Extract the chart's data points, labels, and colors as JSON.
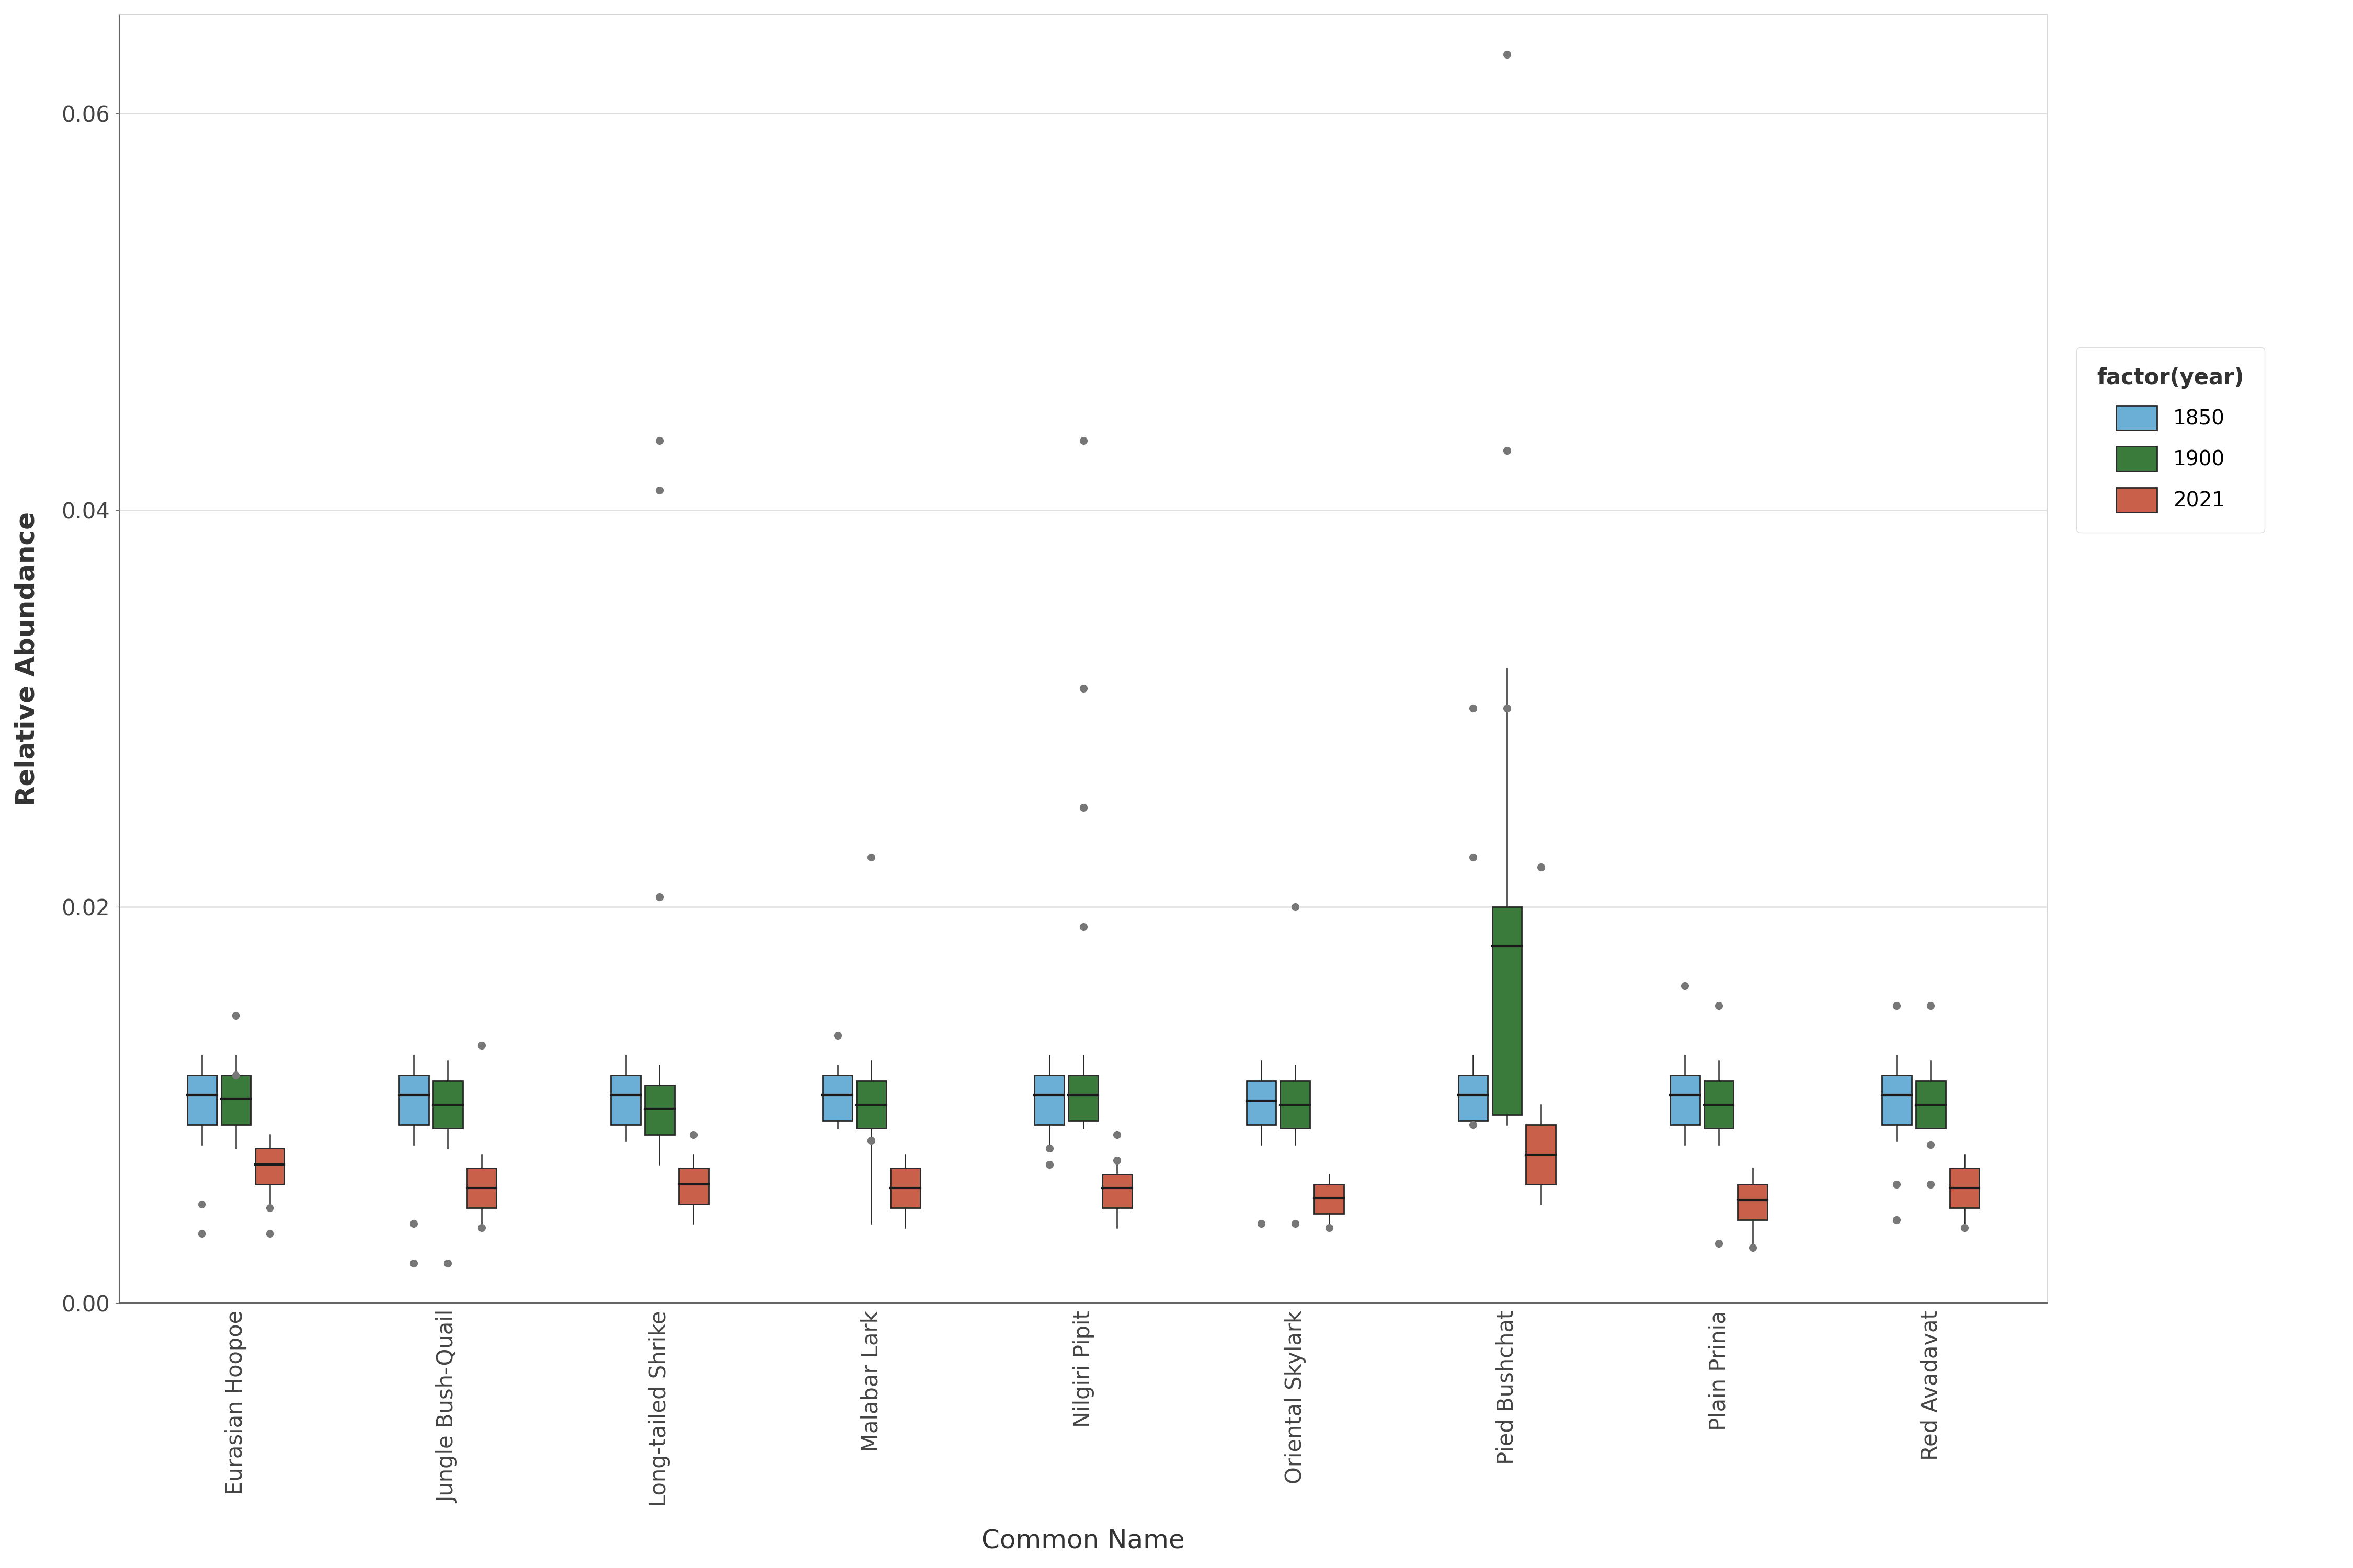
{
  "species": [
    "Eurasian Hoopoe",
    "Jungle Bush-Quail",
    "Long-tailed Shrike",
    "Malabar Lark",
    "Nilgiri Pipit",
    "Oriental Skylark",
    "Pied Bushchat",
    "Plain Prinia",
    "Red Avadavat"
  ],
  "years": [
    "1850",
    "1900",
    "2021"
  ],
  "box_colors": {
    "1850": "#6BAED6",
    "1900": "#3A7A3A",
    "2021": "#C9614A"
  },
  "edge_color": "#2A2A2A",
  "median_color": "#1A1A1A",
  "outlier_color": "#777777",
  "xlabel": "Common Name",
  "ylabel": "Relative Abundance",
  "legend_title": "factor(year)",
  "ylim": [
    0.0,
    0.065
  ],
  "yticks": [
    0.0,
    0.02,
    0.04,
    0.06
  ],
  "background_color": "#FFFFFF",
  "grid_color": "#E0E0E0",
  "box_data": {
    "Eurasian Hoopoe": {
      "1850": {
        "q1": 0.009,
        "median": 0.0105,
        "q3": 0.0115,
        "whisker_low": 0.008,
        "whisker_high": 0.0125,
        "outliers": [
          0.005,
          0.0035
        ]
      },
      "1900": {
        "q1": 0.009,
        "median": 0.0103,
        "q3": 0.0115,
        "whisker_low": 0.0078,
        "whisker_high": 0.0125,
        "outliers": [
          0.0145,
          0.0115
        ]
      },
      "2021": {
        "q1": 0.006,
        "median": 0.007,
        "q3": 0.0078,
        "whisker_low": 0.005,
        "whisker_high": 0.0085,
        "outliers": [
          0.0048,
          0.0035
        ]
      }
    },
    "Jungle Bush-Quail": {
      "1850": {
        "q1": 0.009,
        "median": 0.0105,
        "q3": 0.0115,
        "whisker_low": 0.008,
        "whisker_high": 0.0125,
        "outliers": [
          0.004,
          0.002
        ]
      },
      "1900": {
        "q1": 0.0088,
        "median": 0.01,
        "q3": 0.0112,
        "whisker_low": 0.0078,
        "whisker_high": 0.0122,
        "outliers": [
          0.002
        ]
      },
      "2021": {
        "q1": 0.0048,
        "median": 0.0058,
        "q3": 0.0068,
        "whisker_low": 0.0038,
        "whisker_high": 0.0075,
        "outliers": [
          0.0038,
          0.013
        ]
      }
    },
    "Long-tailed Shrike": {
      "1850": {
        "q1": 0.009,
        "median": 0.0105,
        "q3": 0.0115,
        "whisker_low": 0.0082,
        "whisker_high": 0.0125,
        "outliers": []
      },
      "1900": {
        "q1": 0.0085,
        "median": 0.0098,
        "q3": 0.011,
        "whisker_low": 0.007,
        "whisker_high": 0.012,
        "outliers": [
          0.0205,
          0.041,
          0.0435
        ]
      },
      "2021": {
        "q1": 0.005,
        "median": 0.006,
        "q3": 0.0068,
        "whisker_low": 0.004,
        "whisker_high": 0.0075,
        "outliers": [
          0.0085
        ]
      }
    },
    "Malabar Lark": {
      "1850": {
        "q1": 0.0092,
        "median": 0.0105,
        "q3": 0.0115,
        "whisker_low": 0.0088,
        "whisker_high": 0.012,
        "outliers": [
          0.0135
        ]
      },
      "1900": {
        "q1": 0.0088,
        "median": 0.01,
        "q3": 0.0112,
        "whisker_low": 0.004,
        "whisker_high": 0.0122,
        "outliers": [
          0.0225,
          0.0082
        ]
      },
      "2021": {
        "q1": 0.0048,
        "median": 0.0058,
        "q3": 0.0068,
        "whisker_low": 0.0038,
        "whisker_high": 0.0075,
        "outliers": []
      }
    },
    "Nilgiri Pipit": {
      "1850": {
        "q1": 0.009,
        "median": 0.0105,
        "q3": 0.0115,
        "whisker_low": 0.008,
        "whisker_high": 0.0125,
        "outliers": [
          0.0078,
          0.007
        ]
      },
      "1900": {
        "q1": 0.0092,
        "median": 0.0105,
        "q3": 0.0115,
        "whisker_low": 0.0088,
        "whisker_high": 0.0125,
        "outliers": [
          0.019,
          0.025,
          0.031,
          0.0435
        ]
      },
      "2021": {
        "q1": 0.0048,
        "median": 0.0058,
        "q3": 0.0065,
        "whisker_low": 0.0038,
        "whisker_high": 0.0072,
        "outliers": [
          0.0072,
          0.0085
        ]
      }
    },
    "Oriental Skylark": {
      "1850": {
        "q1": 0.009,
        "median": 0.0102,
        "q3": 0.0112,
        "whisker_low": 0.008,
        "whisker_high": 0.0122,
        "outliers": [
          0.004
        ]
      },
      "1900": {
        "q1": 0.0088,
        "median": 0.01,
        "q3": 0.0112,
        "whisker_low": 0.008,
        "whisker_high": 0.012,
        "outliers": [
          0.02,
          0.004
        ]
      },
      "2021": {
        "q1": 0.0045,
        "median": 0.0053,
        "q3": 0.006,
        "whisker_low": 0.0038,
        "whisker_high": 0.0065,
        "outliers": [
          0.0038
        ]
      }
    },
    "Pied Bushchat": {
      "1850": {
        "q1": 0.0092,
        "median": 0.0105,
        "q3": 0.0115,
        "whisker_low": 0.0088,
        "whisker_high": 0.0125,
        "outliers": [
          0.009,
          0.0225,
          0.03
        ]
      },
      "1900": {
        "q1": 0.0095,
        "median": 0.018,
        "q3": 0.02,
        "whisker_low": 0.009,
        "whisker_high": 0.032,
        "outliers": [
          0.043,
          0.063,
          0.03
        ]
      },
      "2021": {
        "q1": 0.006,
        "median": 0.0075,
        "q3": 0.009,
        "whisker_low": 0.005,
        "whisker_high": 0.01,
        "outliers": [
          0.022
        ]
      }
    },
    "Plain Prinia": {
      "1850": {
        "q1": 0.009,
        "median": 0.0105,
        "q3": 0.0115,
        "whisker_low": 0.008,
        "whisker_high": 0.0125,
        "outliers": [
          0.016
        ]
      },
      "1900": {
        "q1": 0.0088,
        "median": 0.01,
        "q3": 0.0112,
        "whisker_low": 0.008,
        "whisker_high": 0.0122,
        "outliers": [
          0.015,
          0.003
        ]
      },
      "2021": {
        "q1": 0.0042,
        "median": 0.0052,
        "q3": 0.006,
        "whisker_low": 0.0028,
        "whisker_high": 0.0068,
        "outliers": [
          0.0028
        ]
      }
    },
    "Red Avadavat": {
      "1850": {
        "q1": 0.009,
        "median": 0.0105,
        "q3": 0.0115,
        "whisker_low": 0.0082,
        "whisker_high": 0.0125,
        "outliers": [
          0.015,
          0.006,
          0.0042
        ]
      },
      "1900": {
        "q1": 0.0088,
        "median": 0.01,
        "q3": 0.0112,
        "whisker_low": 0.0088,
        "whisker_high": 0.0122,
        "outliers": [
          0.015,
          0.008,
          0.006
        ]
      },
      "2021": {
        "q1": 0.0048,
        "median": 0.0058,
        "q3": 0.0068,
        "whisker_low": 0.0038,
        "whisker_high": 0.0075,
        "outliers": [
          0.0038
        ]
      }
    }
  }
}
